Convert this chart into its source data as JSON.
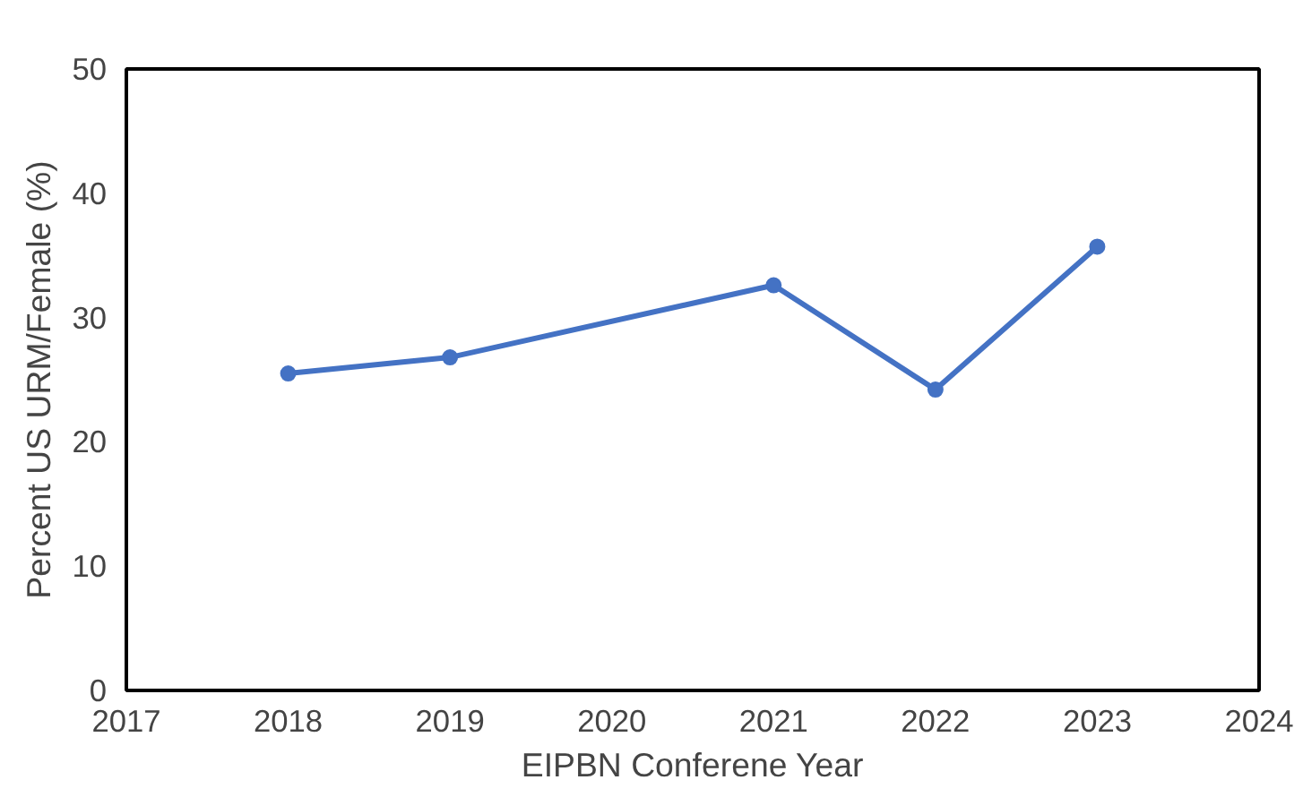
{
  "chart_data": {
    "type": "line",
    "xlabel": "EIPBN Conferene Year",
    "ylabel": "Percent US URM/Female (%)",
    "x": [
      2018,
      2019,
      2021,
      2022,
      2023
    ],
    "series": [
      {
        "color": "#4472c4",
        "values": [
          25.5,
          26.8,
          32.6,
          24.2,
          35.7
        ]
      }
    ],
    "xlim": [
      2017,
      2024
    ],
    "xticks": [
      2017,
      2018,
      2019,
      2020,
      2021,
      2022,
      2023,
      2024
    ],
    "ylim": [
      0,
      50
    ],
    "yticks": [
      0,
      10,
      20,
      30,
      40,
      50
    ],
    "grid": false,
    "marker": "circle",
    "line_style": "solid"
  }
}
